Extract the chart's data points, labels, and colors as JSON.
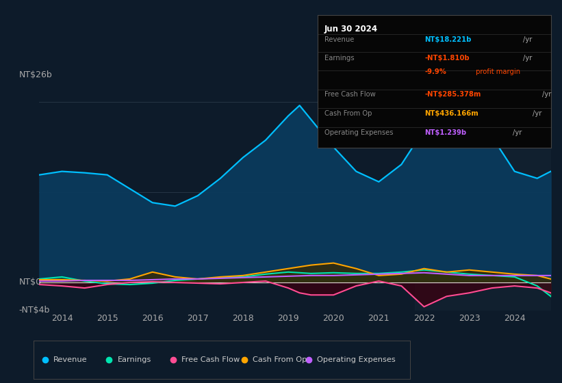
{
  "bg_color": "#0d1b2a",
  "plot_bg_color": "#0d1b2a",
  "title_label": "NT$26b",
  "y_label_bottom": "-NT$4b",
  "y_label_zero": "NT$0",
  "ylim": [
    -4,
    28
  ],
  "xlim": [
    2013.5,
    2024.8
  ],
  "x_ticks": [
    2014,
    2015,
    2016,
    2017,
    2018,
    2019,
    2020,
    2021,
    2022,
    2023,
    2024
  ],
  "revenue_color": "#00bfff",
  "earnings_color": "#00e5b0",
  "fcf_color": "#ff4d94",
  "cashfromop_color": "#ffa500",
  "opex_color": "#bf5fff",
  "revenue": {
    "x": [
      2013.5,
      2014.0,
      2014.5,
      2015.0,
      2015.5,
      2016.0,
      2016.5,
      2017.0,
      2017.5,
      2018.0,
      2018.5,
      2019.0,
      2019.25,
      2019.5,
      2020.0,
      2020.5,
      2021.0,
      2021.5,
      2022.0,
      2022.25,
      2022.5,
      2023.0,
      2023.25,
      2023.5,
      2024.0,
      2024.5,
      2024.8
    ],
    "y": [
      15.5,
      16.0,
      15.8,
      15.5,
      13.5,
      11.5,
      11.0,
      12.5,
      15.0,
      18.0,
      20.5,
      24.0,
      25.5,
      23.5,
      19.5,
      16.0,
      14.5,
      17.0,
      22.0,
      25.0,
      24.5,
      22.0,
      23.5,
      21.0,
      16.0,
      15.0,
      16.0
    ]
  },
  "earnings": {
    "x": [
      2013.5,
      2014.0,
      2014.5,
      2015.0,
      2015.5,
      2016.0,
      2016.5,
      2017.0,
      2017.5,
      2018.0,
      2018.5,
      2019.0,
      2019.5,
      2020.0,
      2020.5,
      2021.0,
      2021.5,
      2022.0,
      2022.5,
      2023.0,
      2023.5,
      2024.0,
      2024.5,
      2024.8
    ],
    "y": [
      0.5,
      0.8,
      0.2,
      -0.2,
      -0.3,
      -0.1,
      0.3,
      0.5,
      0.7,
      0.8,
      1.2,
      1.5,
      1.3,
      1.4,
      1.3,
      1.3,
      1.5,
      1.8,
      1.5,
      1.2,
      1.0,
      0.8,
      -0.5,
      -2.0
    ]
  },
  "fcf": {
    "x": [
      2013.5,
      2014.0,
      2014.5,
      2015.0,
      2015.5,
      2016.0,
      2016.5,
      2017.0,
      2017.5,
      2018.0,
      2018.5,
      2019.0,
      2019.25,
      2019.5,
      2020.0,
      2020.5,
      2021.0,
      2021.5,
      2022.0,
      2022.5,
      2023.0,
      2023.5,
      2024.0,
      2024.5,
      2024.8
    ],
    "y": [
      -0.3,
      -0.5,
      -0.8,
      -0.3,
      0.0,
      0.1,
      0.0,
      -0.1,
      -0.2,
      0.0,
      0.2,
      -0.8,
      -1.5,
      -1.8,
      -1.8,
      -0.5,
      0.2,
      -0.5,
      -3.5,
      -2.0,
      -1.5,
      -0.8,
      -0.5,
      -0.8,
      -1.5
    ]
  },
  "cashfromop": {
    "x": [
      2013.5,
      2014.0,
      2014.5,
      2015.0,
      2015.5,
      2016.0,
      2016.5,
      2017.0,
      2017.5,
      2018.0,
      2018.5,
      2019.0,
      2019.5,
      2020.0,
      2020.5,
      2021.0,
      2021.5,
      2022.0,
      2022.5,
      2023.0,
      2023.5,
      2024.0,
      2024.5,
      2024.8
    ],
    "y": [
      0.4,
      0.4,
      0.3,
      0.2,
      0.5,
      1.5,
      0.8,
      0.5,
      0.8,
      1.0,
      1.5,
      2.0,
      2.5,
      2.8,
      2.0,
      1.0,
      1.2,
      2.0,
      1.5,
      1.8,
      1.5,
      1.2,
      1.0,
      0.5
    ]
  },
  "opex": {
    "x": [
      2013.5,
      2014.0,
      2014.5,
      2015.0,
      2015.5,
      2016.0,
      2016.5,
      2017.0,
      2017.5,
      2018.0,
      2018.5,
      2019.0,
      2019.5,
      2020.0,
      2020.5,
      2021.0,
      2021.5,
      2022.0,
      2022.5,
      2023.0,
      2023.5,
      2024.0,
      2024.5,
      2024.8
    ],
    "y": [
      0.2,
      0.2,
      0.3,
      0.3,
      0.3,
      0.4,
      0.5,
      0.5,
      0.6,
      0.7,
      0.8,
      0.9,
      1.0,
      1.0,
      1.1,
      1.2,
      1.3,
      1.4,
      1.2,
      1.0,
      1.0,
      1.0,
      1.0,
      1.0
    ]
  },
  "info_box": {
    "date": "Jun 30 2024",
    "rows": [
      {
        "label": "Revenue",
        "value": "NT$18.221b",
        "unit": "/yr",
        "value_color": "#00bfff",
        "unit_color": "#aaaaaa"
      },
      {
        "label": "Earnings",
        "value": "-NT$1.810b",
        "unit": "/yr",
        "value_color": "#ff4500",
        "unit_color": "#aaaaaa"
      },
      {
        "label": "",
        "value": "-9.9%",
        "unit": " profit margin",
        "value_color": "#ff4500",
        "unit_color": "#ff4500"
      },
      {
        "label": "Free Cash Flow",
        "value": "-NT$285.378m",
        "unit": "/yr",
        "value_color": "#ff4500",
        "unit_color": "#aaaaaa"
      },
      {
        "label": "Cash From Op",
        "value": "NT$436.166m",
        "unit": "/yr",
        "value_color": "#ffa500",
        "unit_color": "#aaaaaa"
      },
      {
        "label": "Operating Expenses",
        "value": "NT$1.239b",
        "unit": "/yr",
        "value_color": "#bf5fff",
        "unit_color": "#aaaaaa"
      }
    ]
  },
  "legend": [
    {
      "label": "Revenue",
      "color": "#00bfff"
    },
    {
      "label": "Earnings",
      "color": "#00e5b0"
    },
    {
      "label": "Free Cash Flow",
      "color": "#ff4d94"
    },
    {
      "label": "Cash From Op",
      "color": "#ffa500"
    },
    {
      "label": "Operating Expenses",
      "color": "#bf5fff"
    }
  ]
}
